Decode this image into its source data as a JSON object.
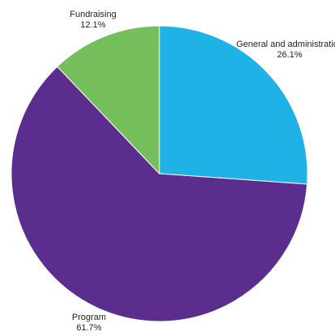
{
  "chart_data": {
    "type": "pie",
    "start_angle": "12 o'clock",
    "direction": "clockwise",
    "legend": "none",
    "slices": [
      {
        "label": "General and administration",
        "value": 26.1,
        "value_label": "26.1%",
        "color": "#1fb2e6"
      },
      {
        "label": "Program",
        "value": 61.7,
        "value_label": "61.7%",
        "color": "#5b2d8e"
      },
      {
        "label": "Fundraising",
        "value": 12.1,
        "value_label": "12.1%",
        "color": "#74bf5b"
      }
    ]
  }
}
